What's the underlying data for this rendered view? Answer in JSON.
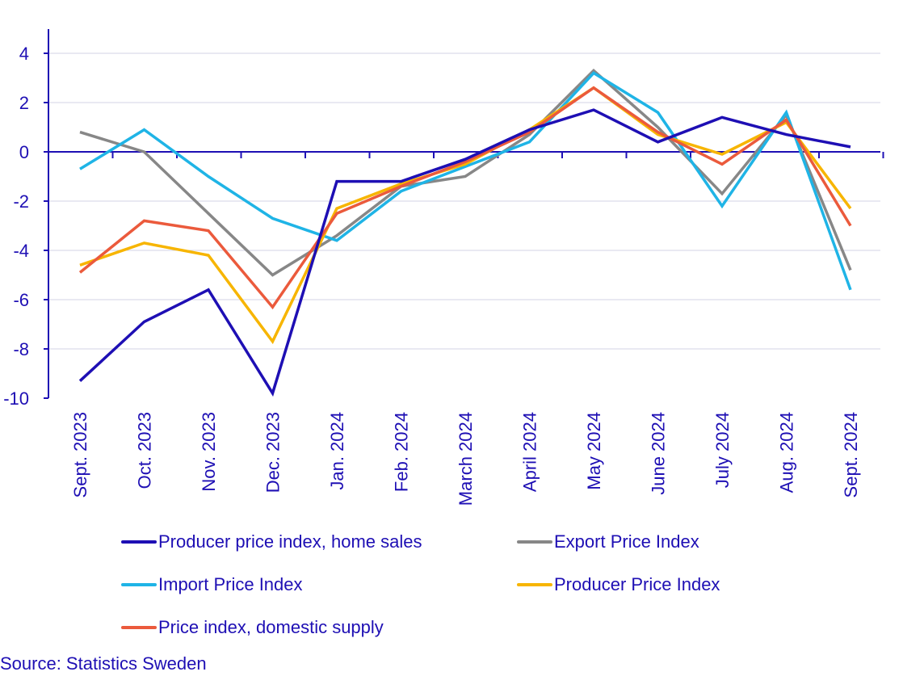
{
  "chart_data": {
    "type": "line",
    "title": "",
    "xlabel": "",
    "ylabel": "",
    "ylim": [
      -10,
      5
    ],
    "yticks": [
      4,
      2,
      0,
      -2,
      -4,
      -6,
      -8,
      -10
    ],
    "grid": true,
    "legend_position": "bottom",
    "categories": [
      "Sept. 2023",
      "Oct. 2023",
      "Nov. 2023",
      "Dec. 2023",
      "Jan. 2024",
      "Feb. 2024",
      "March 2024",
      "April 2024",
      "May 2024",
      "June 2024",
      "July 2024",
      "Aug. 2024",
      "Sept. 2024"
    ],
    "series": [
      {
        "name": "Export Price Index",
        "color": "#878787",
        "values": [
          0.8,
          0.0,
          -2.5,
          -5.0,
          -3.4,
          -1.4,
          -1.0,
          0.7,
          3.3,
          1.0,
          -1.7,
          1.5,
          -4.8
        ]
      },
      {
        "name": "Import Price Index",
        "color": "#1fb4e6",
        "values": [
          -0.7,
          0.9,
          -1.0,
          -2.7,
          -3.6,
          -1.6,
          -0.6,
          0.4,
          3.2,
          1.6,
          -2.2,
          1.6,
          -5.6
        ]
      },
      {
        "name": "Producer Price Index",
        "color": "#f7b500",
        "values": [
          -4.6,
          -3.7,
          -4.2,
          -7.7,
          -2.3,
          -1.3,
          -0.5,
          0.9,
          2.6,
          0.7,
          -0.1,
          1.2,
          -2.3
        ]
      },
      {
        "name": "Price index, domestic supply",
        "color": "#eb5a3c",
        "values": [
          -4.9,
          -2.8,
          -3.2,
          -6.3,
          -2.5,
          -1.4,
          -0.4,
          0.8,
          2.6,
          0.8,
          -0.5,
          1.3,
          -3.0
        ]
      },
      {
        "name": "Producer price index, home sales",
        "color": "#1e0fb4",
        "values": [
          -9.3,
          -6.9,
          -5.6,
          -9.8,
          -1.2,
          -1.2,
          -0.3,
          0.9,
          1.7,
          0.4,
          1.4,
          0.7,
          0.2
        ]
      }
    ],
    "legend_order": [
      4,
      0,
      1,
      2,
      3
    ]
  },
  "source": "Source: Statistics Sweden"
}
